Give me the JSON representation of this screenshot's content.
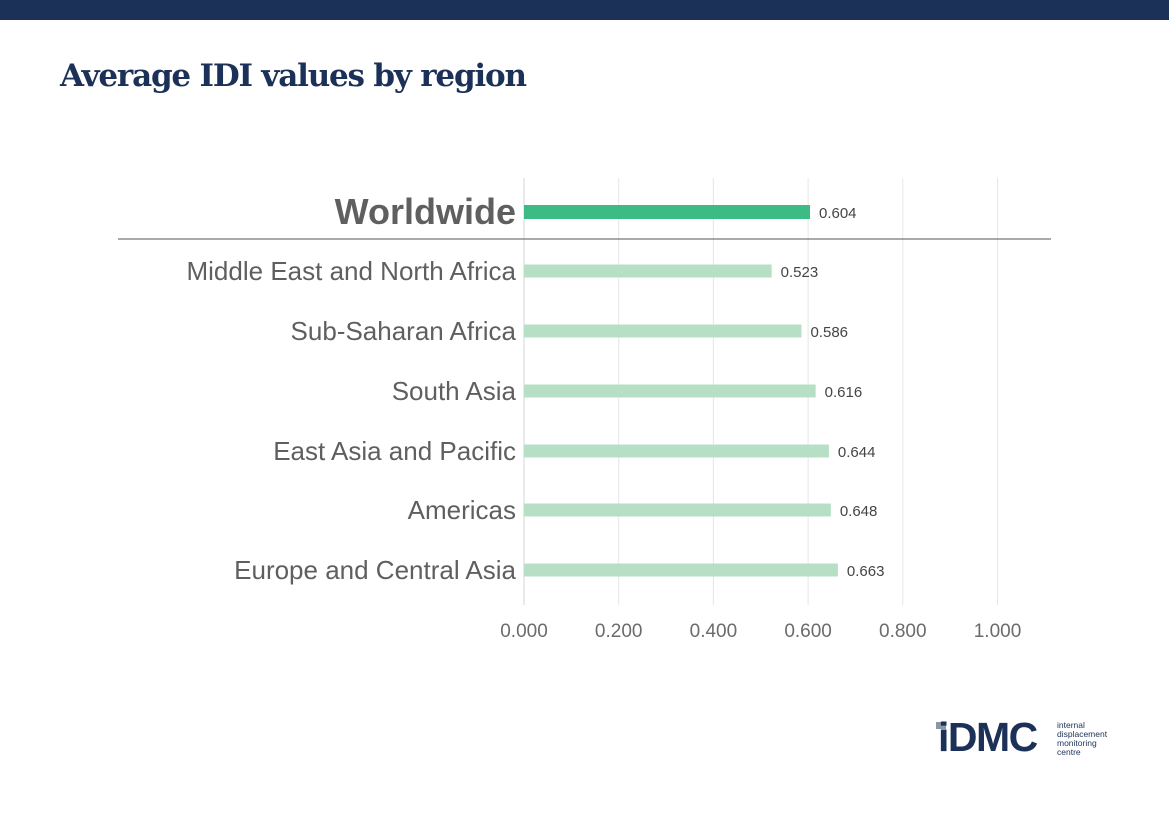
{
  "title": "Average IDI values by region",
  "chart_data": {
    "type": "bar",
    "orientation": "horizontal",
    "categories": [
      "Worldwide",
      "Middle East and North Africa",
      "Sub-Saharan Africa",
      "South Asia",
      "East Asia and Pacific",
      "Americas",
      "Europe and Central Asia"
    ],
    "values": [
      0.604,
      0.523,
      0.586,
      0.616,
      0.644,
      0.648,
      0.663
    ],
    "value_labels": [
      "0.604",
      "0.523",
      "0.586",
      "0.616",
      "0.644",
      "0.648",
      "0.663"
    ],
    "x_ticks": [
      "0.000",
      "0.200",
      "0.400",
      "0.600",
      "0.800",
      "1.000"
    ],
    "xlim": [
      0,
      1.12
    ],
    "grid": true,
    "highlight_category": "Worldwide",
    "colors": {
      "highlight_bar": "#3dbb84",
      "bar": "#b7dfc6",
      "category_text": "#5f5f5f",
      "value_text": "#444444",
      "tick_text": "#6b6b6b",
      "grid": "#e6e6e6",
      "separator": "#555555"
    }
  },
  "logo": {
    "wordmark": "iDMC",
    "subtext": [
      "internal",
      "displacement",
      "monitoring",
      "centre"
    ]
  }
}
